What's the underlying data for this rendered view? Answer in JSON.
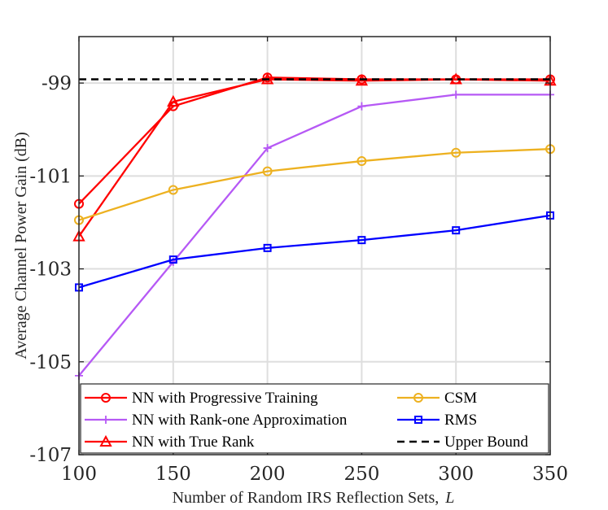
{
  "chart_data": {
    "type": "line",
    "title": "",
    "xlabel": "Number of Random IRS Reflection Sets,",
    "xlabel_symbol": "L",
    "ylabel": "Average Channel Power Gain (dB)",
    "x": [
      100,
      150,
      200,
      250,
      300,
      350
    ],
    "xlim": [
      100,
      350
    ],
    "ylim": [
      -107,
      -98
    ],
    "xticks": [
      "100",
      "150",
      "200",
      "250",
      "300",
      "350"
    ],
    "yticks": [
      "-99",
      "-101",
      "-103",
      "-105",
      "-107"
    ],
    "ytick_values": [
      -99,
      -101,
      -103,
      -105,
      -107
    ],
    "grid": true,
    "legend_position": "bottom",
    "series": [
      {
        "name": "NN with Progressive Training",
        "color": "#ff0000",
        "marker": "circle",
        "dash": "solid",
        "values": [
          -101.6,
          -99.5,
          -98.88,
          -98.92,
          -98.92,
          -98.92
        ]
      },
      {
        "name": "NN with Rank-one Approximation",
        "color": "#b659f5",
        "marker": "plus",
        "dash": "solid",
        "values": [
          -105.3,
          -102.85,
          -100.4,
          -99.5,
          -99.25,
          -99.25
        ]
      },
      {
        "name": "NN with True Rank",
        "color": "#ff0000",
        "marker": "triangle",
        "dash": "solid",
        "values": [
          -102.3,
          -99.4,
          -98.92,
          -98.95,
          -98.92,
          -98.95
        ]
      },
      {
        "name": "CSM",
        "color": "#edb120",
        "marker": "circle",
        "dash": "solid",
        "values": [
          -101.95,
          -101.3,
          -100.9,
          -100.68,
          -100.5,
          -100.42
        ]
      },
      {
        "name": "RMS",
        "color": "#0000ff",
        "marker": "square",
        "dash": "solid",
        "values": [
          -103.4,
          -102.8,
          -102.55,
          -102.38,
          -102.17,
          -101.85
        ]
      },
      {
        "name": "Upper Bound",
        "color": "#000000",
        "marker": "none",
        "dash": "dashed",
        "values": [
          -98.92,
          -98.92,
          -98.92,
          -98.92,
          -98.92,
          -98.92
        ]
      }
    ],
    "legend": {
      "left": [
        "NN with Progressive Training",
        "NN with Rank-one Approximation",
        "NN with True Rank"
      ],
      "right": [
        "CSM",
        "RMS",
        "Upper Bound"
      ]
    }
  }
}
